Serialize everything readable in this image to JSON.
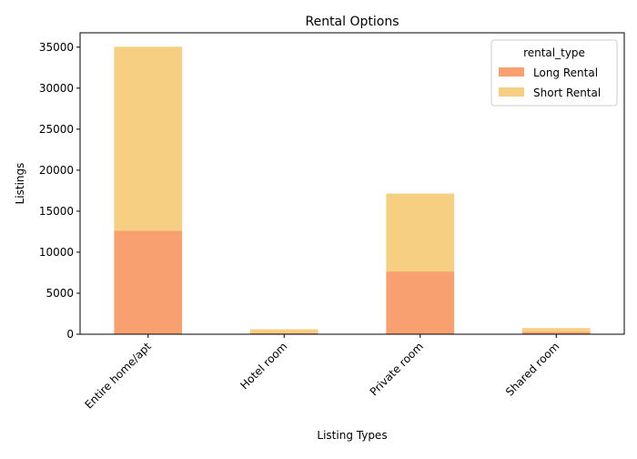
{
  "chart_data": {
    "type": "bar",
    "stacked": true,
    "title": "Rental Options",
    "xlabel": "Listing Types",
    "ylabel": "Listings",
    "categories": [
      "Entire home/apt",
      "Hotel room",
      "Private room",
      "Shared room"
    ],
    "series": [
      {
        "name": "Long Rental",
        "values": [
          12600,
          150,
          7650,
          300
        ],
        "color": "#f8a070"
      },
      {
        "name": "Short Rental",
        "values": [
          22450,
          450,
          9500,
          450
        ],
        "color": "#f6cf82"
      }
    ],
    "ylim": [
      0,
      36750
    ],
    "yticks": [
      0,
      5000,
      10000,
      15000,
      20000,
      25000,
      30000,
      35000
    ],
    "ytick_labels": [
      "0",
      "5000",
      "10000",
      "15000",
      "20000",
      "25000",
      "30000",
      "35000"
    ],
    "x_tick_rotation": 45,
    "grid": false,
    "legend": {
      "title": "rental_type",
      "position": "top-right"
    }
  }
}
